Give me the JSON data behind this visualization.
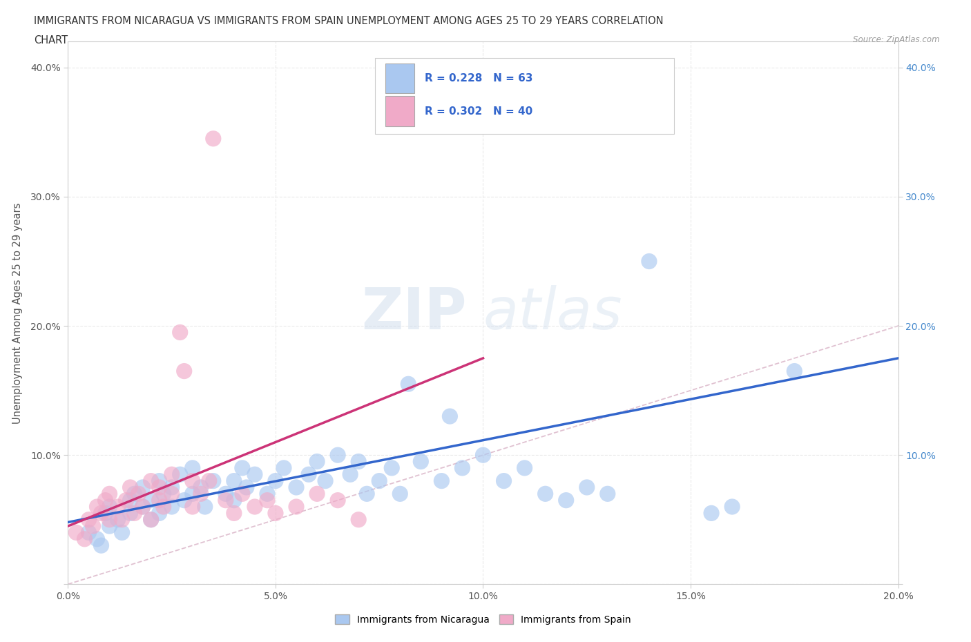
{
  "title_line1": "IMMIGRANTS FROM NICARAGUA VS IMMIGRANTS FROM SPAIN UNEMPLOYMENT AMONG AGES 25 TO 29 YEARS CORRELATION",
  "title_line2": "CHART",
  "source_text": "Source: ZipAtlas.com",
  "ylabel": "Unemployment Among Ages 25 to 29 years",
  "xlim": [
    0.0,
    0.2
  ],
  "ylim": [
    0.0,
    0.42
  ],
  "x_ticks": [
    0.0,
    0.05,
    0.1,
    0.15,
    0.2
  ],
  "x_tick_labels": [
    "0.0%",
    "5.0%",
    "10.0%",
    "15.0%",
    "20.0%"
  ],
  "y_ticks": [
    0.0,
    0.1,
    0.2,
    0.3,
    0.4
  ],
  "y_tick_labels": [
    "",
    "10.0%",
    "20.0%",
    "30.0%",
    "40.0%"
  ],
  "color_nicaragua": "#aac8f0",
  "color_spain": "#f0aac8",
  "line_color_nicaragua": "#3366cc",
  "line_color_spain": "#cc3377",
  "diagonal_color": "#ddbbcc",
  "r_nicaragua": 0.228,
  "n_nicaragua": 63,
  "r_spain": 0.302,
  "n_spain": 40,
  "scatter_nicaragua_x": [
    0.005,
    0.007,
    0.008,
    0.009,
    0.01,
    0.01,
    0.012,
    0.013,
    0.015,
    0.015,
    0.016,
    0.018,
    0.018,
    0.02,
    0.02,
    0.022,
    0.022,
    0.023,
    0.025,
    0.025,
    0.027,
    0.028,
    0.03,
    0.03,
    0.032,
    0.033,
    0.035,
    0.038,
    0.04,
    0.04,
    0.042,
    0.043,
    0.045,
    0.048,
    0.05,
    0.052,
    0.055,
    0.058,
    0.06,
    0.062,
    0.065,
    0.068,
    0.07,
    0.072,
    0.075,
    0.078,
    0.08,
    0.082,
    0.085,
    0.09,
    0.092,
    0.095,
    0.1,
    0.105,
    0.11,
    0.115,
    0.12,
    0.125,
    0.13,
    0.14,
    0.155,
    0.16,
    0.175
  ],
  "scatter_nicaragua_y": [
    0.04,
    0.035,
    0.03,
    0.055,
    0.045,
    0.06,
    0.05,
    0.04,
    0.065,
    0.055,
    0.07,
    0.06,
    0.075,
    0.05,
    0.065,
    0.055,
    0.08,
    0.07,
    0.06,
    0.075,
    0.085,
    0.065,
    0.07,
    0.09,
    0.075,
    0.06,
    0.08,
    0.07,
    0.065,
    0.08,
    0.09,
    0.075,
    0.085,
    0.07,
    0.08,
    0.09,
    0.075,
    0.085,
    0.095,
    0.08,
    0.1,
    0.085,
    0.095,
    0.07,
    0.08,
    0.09,
    0.07,
    0.155,
    0.095,
    0.08,
    0.13,
    0.09,
    0.1,
    0.08,
    0.09,
    0.07,
    0.065,
    0.075,
    0.07,
    0.25,
    0.055,
    0.06,
    0.165
  ],
  "scatter_spain_x": [
    0.002,
    0.004,
    0.005,
    0.006,
    0.007,
    0.008,
    0.009,
    0.01,
    0.01,
    0.012,
    0.013,
    0.014,
    0.015,
    0.016,
    0.017,
    0.018,
    0.02,
    0.02,
    0.022,
    0.022,
    0.023,
    0.025,
    0.025,
    0.027,
    0.028,
    0.03,
    0.03,
    0.032,
    0.034,
    0.035,
    0.038,
    0.04,
    0.042,
    0.045,
    0.048,
    0.05,
    0.055,
    0.06,
    0.065,
    0.07
  ],
  "scatter_spain_y": [
    0.04,
    0.035,
    0.05,
    0.045,
    0.06,
    0.055,
    0.065,
    0.05,
    0.07,
    0.06,
    0.05,
    0.065,
    0.075,
    0.055,
    0.07,
    0.06,
    0.08,
    0.05,
    0.065,
    0.075,
    0.06,
    0.07,
    0.085,
    0.195,
    0.165,
    0.08,
    0.06,
    0.07,
    0.08,
    0.345,
    0.065,
    0.055,
    0.07,
    0.06,
    0.065,
    0.055,
    0.06,
    0.07,
    0.065,
    0.05
  ],
  "nic_trend_x": [
    0.0,
    0.2
  ],
  "nic_trend_y": [
    0.048,
    0.175
  ],
  "spa_trend_x": [
    0.0,
    0.1
  ],
  "spa_trend_y": [
    0.045,
    0.175
  ]
}
